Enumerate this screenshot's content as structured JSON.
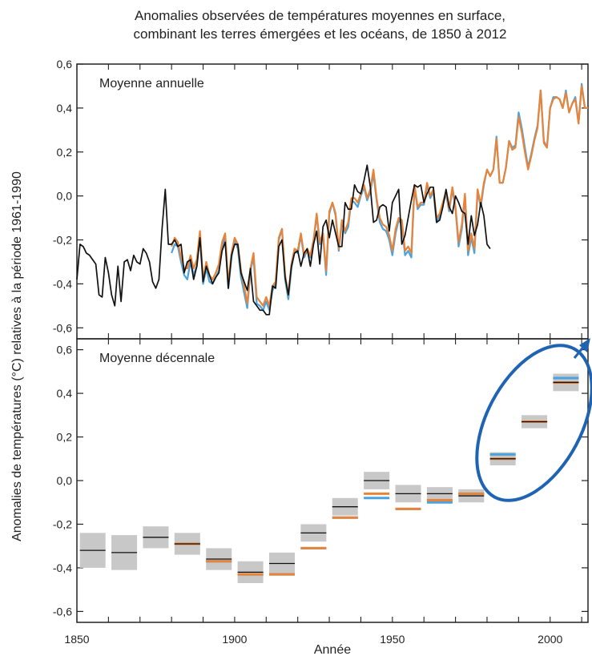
{
  "chart_data": [
    {
      "type": "line",
      "title": "Anomalies observées de températures moyennes en surface, combinant les terres émergées et les océans, de 1850 à 2012",
      "panel_label": "Moyenne annuelle",
      "xlabel": "Année",
      "ylabel": "Anomalies de températures (°C) relatives à la période 1961-1990",
      "xlim": [
        1850,
        2012
      ],
      "ylim": [
        -0.65,
        0.6
      ],
      "x_ticks": [
        1850,
        1900,
        1950,
        2000
      ],
      "y_ticks": [
        "-0,6",
        "-0,4",
        "-0,2",
        "0,0",
        "0,2",
        "0,4",
        "0,6"
      ],
      "colors": [
        "#111111",
        "#4aa3df",
        "#e8843a"
      ],
      "series": [
        {
          "start_year": 1850,
          "values": [
            -0.38,
            -0.22,
            -0.23,
            -0.26,
            -0.27,
            -0.29,
            -0.31,
            -0.45,
            -0.46,
            -0.28,
            -0.35,
            -0.45,
            -0.5,
            -0.32,
            -0.48,
            -0.3,
            -0.29,
            -0.34,
            -0.27,
            -0.3,
            -0.31,
            -0.24,
            -0.26,
            -0.3,
            -0.39,
            -0.42,
            -0.38,
            -0.15,
            0.03,
            -0.22,
            -0.22,
            -0.2,
            -0.23,
            -0.22,
            -0.35,
            -0.3,
            -0.29,
            -0.38,
            -0.32,
            -0.19,
            -0.39,
            -0.32,
            -0.36,
            -0.4,
            -0.37,
            -0.35,
            -0.25,
            -0.21,
            -0.42,
            -0.27,
            -0.22,
            -0.22,
            -0.35,
            -0.39,
            -0.43,
            -0.33,
            -0.48,
            -0.5,
            -0.52,
            -0.52,
            -0.54,
            -0.54,
            -0.41,
            -0.42,
            -0.23,
            -0.2,
            -0.37,
            -0.45,
            -0.32,
            -0.26,
            -0.25,
            -0.32,
            -0.26,
            -0.24,
            -0.32,
            -0.22,
            -0.16,
            -0.31,
            -0.14,
            -0.11,
            -0.19,
            -0.11,
            -0.17,
            -0.23,
            -0.23,
            -0.03,
            -0.06,
            -0.06,
            0.05,
            0.02,
            0.01,
            0.07,
            0.14,
            0.04,
            -0.12,
            -0.11,
            -0.05,
            -0.04,
            -0.05,
            -0.16,
            -0.03,
            0.0,
            0.03,
            -0.22,
            -0.18,
            -0.1,
            -0.02,
            0.05,
            0.04,
            0.05,
            -0.03,
            0.01,
            0.04,
            0.04,
            -0.12,
            -0.11,
            -0.05,
            0.03,
            -0.05,
            -0.08,
            0.0,
            -0.03,
            -0.07,
            -0.08,
            -0.22,
            -0.09,
            -0.18,
            -0.13,
            -0.03,
            -0.09,
            -0.22,
            -0.24
          ]
        },
        {
          "start_year": 1880,
          "values": [
            -0.26,
            -0.22,
            -0.23,
            -0.3,
            -0.36,
            -0.38,
            -0.3,
            -0.36,
            -0.32,
            -0.18,
            -0.4,
            -0.33,
            -0.39,
            -0.4,
            -0.37,
            -0.34,
            -0.23,
            -0.18,
            -0.42,
            -0.28,
            -0.2,
            -0.24,
            -0.37,
            -0.44,
            -0.51,
            -0.34,
            -0.28,
            -0.49,
            -0.5,
            -0.52,
            -0.48,
            -0.52,
            -0.43,
            -0.4,
            -0.2,
            -0.15,
            -0.38,
            -0.47,
            -0.33,
            -0.25,
            -0.26,
            -0.18,
            -0.28,
            -0.25,
            -0.28,
            -0.21,
            -0.09,
            -0.22,
            -0.18,
            -0.36,
            -0.08,
            -0.03,
            -0.09,
            -0.25,
            -0.12,
            -0.17,
            -0.14,
            -0.02,
            -0.03,
            -0.05,
            0.0,
            0.04,
            -0.02,
            0.02,
            0.1,
            -0.02,
            -0.12,
            -0.15,
            -0.16,
            -0.2,
            -0.27,
            -0.17,
            -0.11,
            -0.13,
            -0.27,
            -0.25,
            -0.28,
            0.04,
            -0.06,
            -0.04,
            -0.04,
            0.05,
            -0.01,
            0.02,
            -0.12,
            -0.09,
            -0.04,
            0.01,
            -0.07,
            0.03,
            -0.06,
            -0.23,
            -0.15,
            0.0,
            -0.27,
            -0.19,
            -0.26,
            0.02,
            -0.05,
            0.05,
            0.12,
            0.09,
            0.12,
            0.27,
            0.06,
            0.06,
            0.13,
            0.25,
            0.22,
            0.23,
            0.38,
            0.31,
            0.22,
            0.13,
            0.19,
            0.26,
            0.32,
            0.48,
            0.25,
            0.22,
            0.4,
            0.45,
            0.45,
            0.44,
            0.4,
            0.48,
            0.38,
            0.42,
            0.45,
            0.33,
            0.51,
            0.4,
            0.4
          ]
        },
        {
          "start_year": 1880,
          "values": [
            -0.23,
            -0.19,
            -0.21,
            -0.28,
            -0.33,
            -0.33,
            -0.27,
            -0.33,
            -0.29,
            -0.16,
            -0.38,
            -0.3,
            -0.36,
            -0.38,
            -0.35,
            -0.31,
            -0.21,
            -0.17,
            -0.4,
            -0.26,
            -0.19,
            -0.22,
            -0.34,
            -0.41,
            -0.49,
            -0.33,
            -0.26,
            -0.46,
            -0.48,
            -0.5,
            -0.46,
            -0.5,
            -0.41,
            -0.39,
            -0.19,
            -0.15,
            -0.36,
            -0.45,
            -0.31,
            -0.24,
            -0.25,
            -0.17,
            -0.27,
            -0.24,
            -0.27,
            -0.2,
            -0.08,
            -0.21,
            -0.17,
            -0.34,
            -0.07,
            -0.03,
            -0.08,
            -0.24,
            -0.11,
            -0.16,
            -0.12,
            -0.01,
            -0.01,
            -0.03,
            0.01,
            0.05,
            -0.01,
            0.03,
            0.12,
            -0.01,
            -0.1,
            -0.13,
            -0.14,
            -0.18,
            -0.25,
            -0.15,
            -0.1,
            -0.11,
            -0.25,
            -0.23,
            -0.26,
            0.05,
            -0.05,
            -0.03,
            -0.03,
            0.06,
            0.0,
            0.03,
            -0.1,
            -0.08,
            -0.03,
            0.02,
            -0.06,
            0.04,
            -0.05,
            -0.21,
            -0.13,
            0.01,
            -0.25,
            -0.17,
            -0.24,
            0.03,
            -0.04,
            0.06,
            0.12,
            0.09,
            0.12,
            0.26,
            0.06,
            0.06,
            0.13,
            0.25,
            0.21,
            0.22,
            0.36,
            0.29,
            0.2,
            0.12,
            0.18,
            0.25,
            0.31,
            0.48,
            0.24,
            0.22,
            0.4,
            0.44,
            0.45,
            0.44,
            0.4,
            0.47,
            0.38,
            0.42,
            0.44,
            0.33,
            0.5,
            0.4,
            0.4
          ]
        }
      ]
    },
    {
      "type": "bar",
      "panel_label": "Moyenne décennale",
      "xlabel": "Année",
      "xlim": [
        1850,
        2012
      ],
      "ylim": [
        -0.65,
        0.65
      ],
      "x_ticks": [
        1850,
        1900,
        1950,
        2000
      ],
      "y_ticks": [
        "-0,6",
        "-0,4",
        "-0,2",
        "0,0",
        "0,2",
        "0,4",
        "0,6"
      ],
      "colors": [
        "#111111",
        "#4aa3df",
        "#e8843a",
        "#c8c8c8"
      ],
      "decades": [
        1850,
        1860,
        1870,
        1880,
        1890,
        1900,
        1910,
        1920,
        1930,
        1940,
        1950,
        1960,
        1970,
        1980,
        1990,
        2000
      ],
      "series": [
        {
          "values": [
            -0.32,
            -0.33,
            -0.26,
            -0.29,
            -0.36,
            -0.42,
            -0.38,
            -0.24,
            -0.12,
            0.0,
            -0.06,
            -0.06,
            -0.07,
            0.1,
            0.27,
            0.45
          ],
          "uncertainty": [
            0.08,
            0.08,
            0.05,
            0.05,
            0.05,
            0.05,
            0.05,
            0.04,
            0.04,
            0.04,
            0.04,
            0.03,
            0.03,
            0.03,
            0.03,
            0.04
          ]
        },
        {
          "values": [
            null,
            null,
            null,
            -0.29,
            -0.37,
            -0.43,
            -0.43,
            -0.31,
            -0.17,
            -0.08,
            -0.13,
            -0.1,
            -0.06,
            0.12,
            0.27,
            0.47
          ]
        },
        {
          "values": [
            null,
            null,
            null,
            -0.29,
            -0.37,
            -0.43,
            -0.43,
            -0.31,
            -0.17,
            -0.06,
            -0.13,
            -0.09,
            -0.06,
            0.1,
            0.27,
            0.45
          ]
        }
      ]
    }
  ]
}
